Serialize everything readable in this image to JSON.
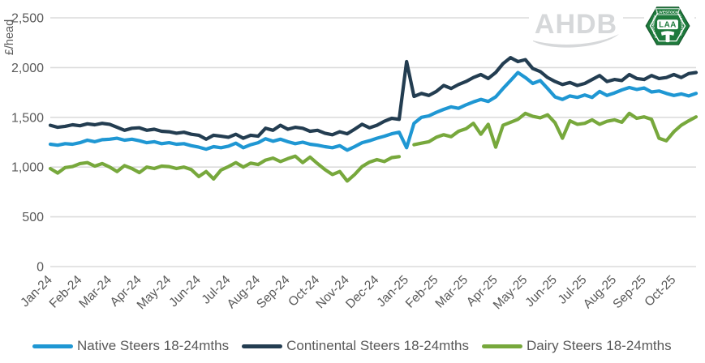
{
  "chart_data": {
    "type": "line",
    "title": "",
    "ylabel": "£/head",
    "y_axis": {
      "min": 0,
      "max": 2500,
      "step": 500,
      "tick_labels": [
        "0",
        "500",
        "1,000",
        "1,500",
        "2,000",
        "2,500"
      ]
    },
    "grid": "horizontal-only",
    "grid_color": "#dcdcdc",
    "axis_text_color": "#595959",
    "legend_position": "bottom",
    "categories": [
      "Jan-24",
      "Feb-24",
      "Mar-24",
      "Apr-24",
      "May-24",
      "Jun-24",
      "Jul-24",
      "Aug-24",
      "Sep-24",
      "Oct-24",
      "Nov-24",
      "Dec-24",
      "Jan-25",
      "Feb-25",
      "Mar-25",
      "Apr-25",
      "May-25",
      "Jun-25",
      "Jul-25",
      "Aug-25",
      "Sep-25",
      "Oct-25"
    ],
    "points_per_month": 4,
    "series": [
      {
        "name": "Native Steers 18-24mths",
        "color": "#1f97d3",
        "values": [
          1230,
          1220,
          1235,
          1230,
          1245,
          1270,
          1255,
          1275,
          1280,
          1290,
          1270,
          1280,
          1265,
          1245,
          1255,
          1235,
          1245,
          1230,
          1235,
          1215,
          1200,
          1180,
          1205,
          1195,
          1210,
          1240,
          1195,
          1225,
          1245,
          1285,
          1260,
          1280,
          1255,
          1235,
          1250,
          1230,
          1220,
          1205,
          1195,
          1215,
          1170,
          1205,
          1245,
          1265,
          1290,
          1310,
          1335,
          1350,
          1195,
          1440,
          1500,
          1515,
          1550,
          1580,
          1605,
          1590,
          1625,
          1655,
          1680,
          1660,
          1705,
          1790,
          1870,
          1950,
          1900,
          1840,
          1870,
          1790,
          1705,
          1680,
          1715,
          1700,
          1725,
          1700,
          1760,
          1720,
          1745,
          1775,
          1800,
          1780,
          1795,
          1755,
          1765,
          1740,
          1720,
          1735,
          1715,
          1740
        ]
      },
      {
        "name": "Continental Steers 18-24mths",
        "color": "#233d51",
        "values": [
          1420,
          1400,
          1410,
          1425,
          1415,
          1435,
          1425,
          1440,
          1430,
          1400,
          1370,
          1390,
          1395,
          1370,
          1380,
          1360,
          1355,
          1340,
          1350,
          1330,
          1320,
          1280,
          1320,
          1310,
          1300,
          1330,
          1290,
          1320,
          1310,
          1390,
          1370,
          1420,
          1380,
          1400,
          1390,
          1360,
          1370,
          1340,
          1325,
          1355,
          1335,
          1380,
          1430,
          1395,
          1420,
          1460,
          1490,
          1480,
          2060,
          1710,
          1740,
          1720,
          1760,
          1820,
          1790,
          1830,
          1860,
          1900,
          1930,
          1890,
          1950,
          2040,
          2100,
          2060,
          2080,
          1990,
          1960,
          1900,
          1860,
          1830,
          1850,
          1820,
          1840,
          1880,
          1920,
          1860,
          1880,
          1870,
          1930,
          1890,
          1880,
          1920,
          1890,
          1900,
          1930,
          1900,
          1940,
          1950
        ]
      },
      {
        "name": "Dairy Steers 18-24mths",
        "color": "#77a83c",
        "values": [
          985,
          940,
          995,
          1005,
          1035,
          1045,
          1010,
          1035,
          1000,
          955,
          1015,
          985,
          945,
          1000,
          985,
          1010,
          1005,
          985,
          1000,
          975,
          905,
          955,
          880,
          970,
          1005,
          1045,
          1000,
          1040,
          1025,
          1070,
          1090,
          1055,
          1085,
          1110,
          1045,
          1100,
          1035,
          975,
          925,
          955,
          860,
          925,
          1005,
          1050,
          1075,
          1055,
          1095,
          1105,
          null,
          1225,
          1240,
          1255,
          1300,
          1325,
          1305,
          1360,
          1385,
          1440,
          1330,
          1430,
          1200,
          1420,
          1450,
          1480,
          1540,
          1510,
          1495,
          1525,
          1445,
          1290,
          1465,
          1430,
          1440,
          1475,
          1430,
          1460,
          1475,
          1450,
          1540,
          1490,
          1505,
          1480,
          1290,
          1265,
          1355,
          1420,
          1465,
          1505
        ]
      }
    ]
  },
  "legend": {
    "items": [
      {
        "label": "Native Steers 18-24mths"
      },
      {
        "label": "Continental Steers 18-24mths"
      },
      {
        "label": "Dairy Steers 18-24mths"
      }
    ]
  },
  "logos": {
    "ahdb_text": "AHDB",
    "laa_banner": "LIVESTOCK",
    "laa_text": "LAA",
    "laa_left": "AUCTIONEERS",
    "laa_right": "ASSOCIATION",
    "laa_green": "#1e7a3c",
    "ahdb_gray": "#d6d8da"
  }
}
